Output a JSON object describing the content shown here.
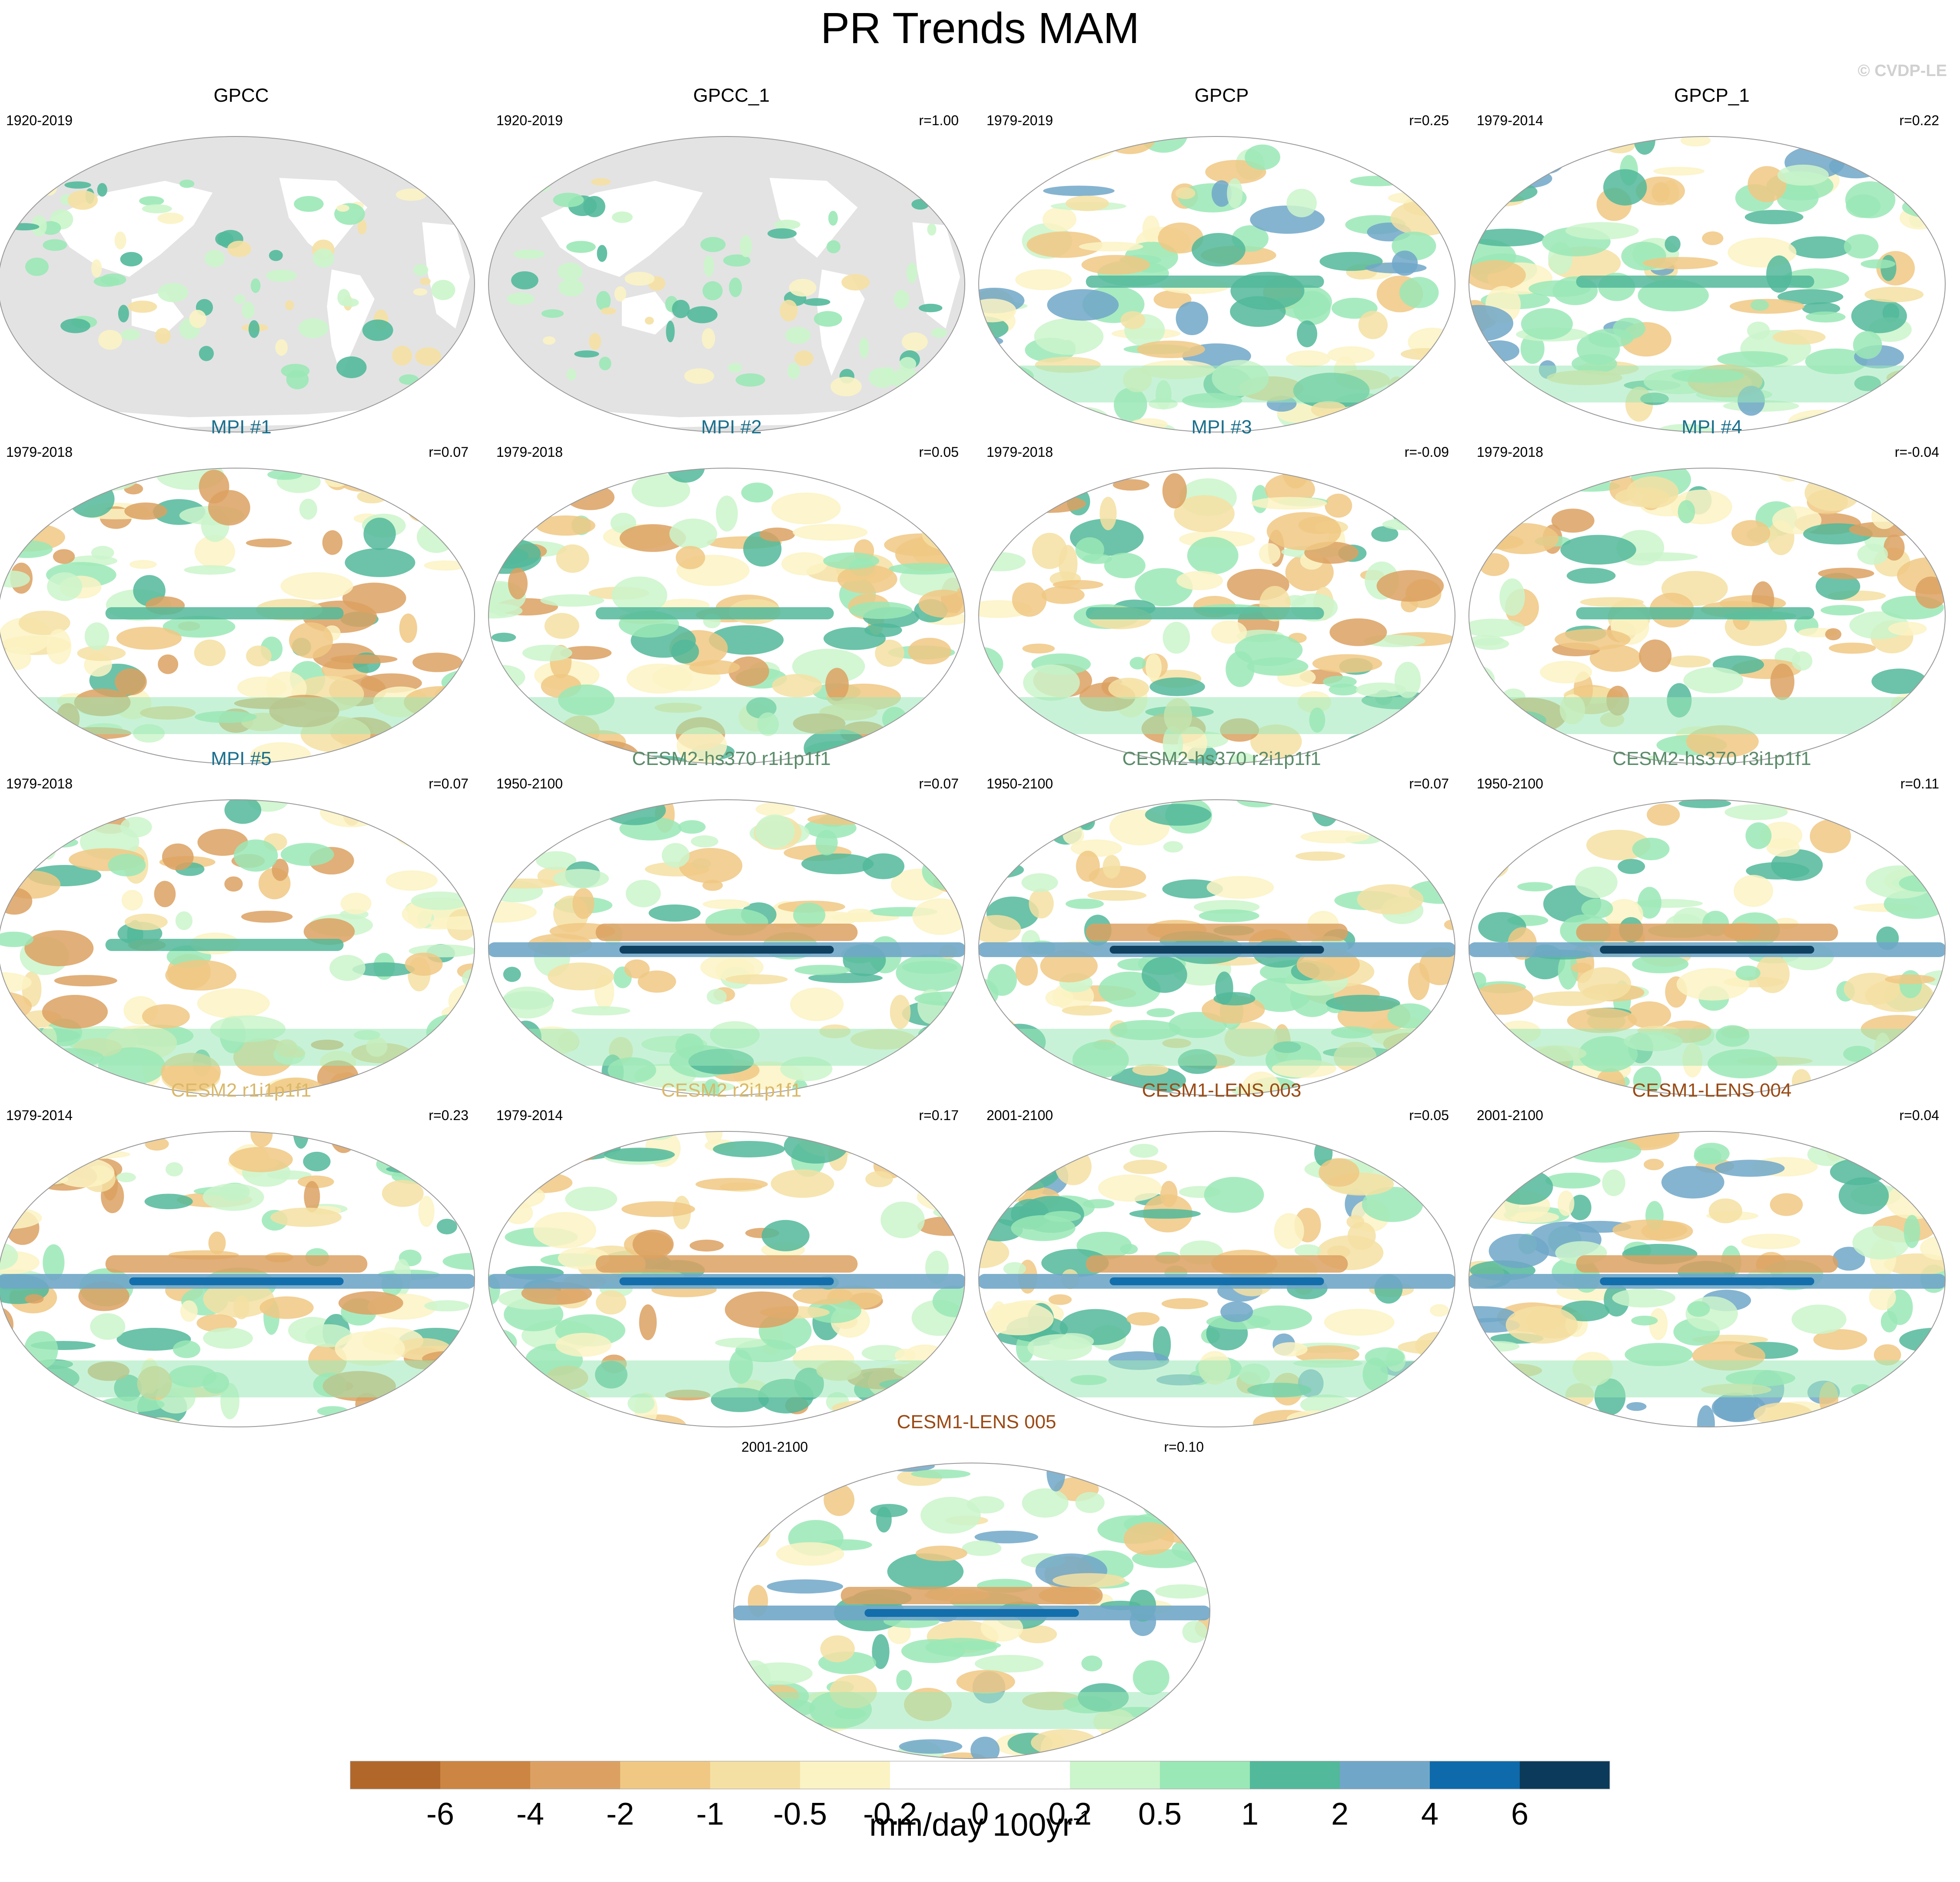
{
  "chart_data": {
    "type": "heatmap",
    "title": "PR Trends MAM",
    "watermark": "© CVDP-LE",
    "colorbar": {
      "tick_labels": [
        "-6",
        "-4",
        "-2",
        "-1",
        "-0.5",
        "-0.2",
        "0",
        "0.2",
        "0.5",
        "1",
        "2",
        "4",
        "6"
      ],
      "colors": [
        "#b2672a",
        "#cc8542",
        "#dca162",
        "#f0c884",
        "#f5e0a3",
        "#fbf3c4",
        "#ffffff",
        "#ffffff",
        "#cbf5cb",
        "#9ae8b6",
        "#52b99a",
        "#70a7c8",
        "#0e6aaa",
        "#0b3a5a"
      ],
      "units_base": "mm/day 100yr",
      "units_exponent": "-1"
    },
    "panels": [
      {
        "title": "GPCC",
        "period": "1920-2019",
        "corr": "",
        "title_color": "#000000",
        "field": "land",
        "pattern": "obs"
      },
      {
        "title": "GPCC_1",
        "period": "1920-2019",
        "corr": "r=1.00",
        "title_color": "#000000",
        "field": "land",
        "pattern": "obs"
      },
      {
        "title": "GPCP",
        "period": "1979-2019",
        "corr": "r=0.25",
        "title_color": "#000000",
        "field": "global",
        "pattern": "gpcp"
      },
      {
        "title": "GPCP_1",
        "period": "1979-2014",
        "corr": "r=0.22",
        "title_color": "#000000",
        "field": "global",
        "pattern": "gpcp"
      },
      {
        "title": "MPI #1",
        "period": "1979-2018",
        "corr": "r=0.07",
        "title_color": "#1a6f8c",
        "field": "global",
        "pattern": "mpi"
      },
      {
        "title": "MPI #2",
        "period": "1979-2018",
        "corr": "r=0.05",
        "title_color": "#1a6f8c",
        "field": "global",
        "pattern": "mpi"
      },
      {
        "title": "MPI #3",
        "period": "1979-2018",
        "corr": "r=-0.09",
        "title_color": "#1a6f8c",
        "field": "global",
        "pattern": "mpi"
      },
      {
        "title": "MPI #4",
        "period": "1979-2018",
        "corr": "r=-0.04",
        "title_color": "#1a6f8c",
        "field": "global",
        "pattern": "mpi"
      },
      {
        "title": "MPI #5",
        "period": "1979-2018",
        "corr": "r=0.07",
        "title_color": "#1a6f8c",
        "field": "global",
        "pattern": "mpi"
      },
      {
        "title": "CESM2-hs370 r1i1p1f1",
        "period": "1950-2100",
        "corr": "r=0.07",
        "title_color": "#5b8c6a",
        "field": "global",
        "pattern": "hs370"
      },
      {
        "title": "CESM2-hs370 r2i1p1f1",
        "period": "1950-2100",
        "corr": "r=0.07",
        "title_color": "#5b8c6a",
        "field": "global",
        "pattern": "hs370"
      },
      {
        "title": "CESM2-hs370 r3i1p1f1",
        "period": "1950-2100",
        "corr": "r=0.11",
        "title_color": "#5b8c6a",
        "field": "global",
        "pattern": "hs370"
      },
      {
        "title": "CESM2 r1i1p1f1",
        "period": "1979-2014",
        "corr": "r=0.23",
        "title_color": "#d9b86a",
        "field": "global",
        "pattern": "cesm2"
      },
      {
        "title": "CESM2 r2i1p1f1",
        "period": "1979-2014",
        "corr": "r=0.17",
        "title_color": "#d9b86a",
        "field": "global",
        "pattern": "cesm2"
      },
      {
        "title": "CESM1-LENS 003",
        "period": "2001-2100",
        "corr": "r=0.05",
        "title_color": "#9a4a15",
        "field": "global",
        "pattern": "lens"
      },
      {
        "title": "CESM1-LENS 004",
        "period": "2001-2100",
        "corr": "r=0.04",
        "title_color": "#9a4a15",
        "field": "global",
        "pattern": "lens"
      },
      {
        "title": "CESM1-LENS 005",
        "period": "2001-2100",
        "corr": "r=0.10",
        "title_color": "#9a4a15",
        "field": "global",
        "pattern": "lens"
      }
    ]
  }
}
